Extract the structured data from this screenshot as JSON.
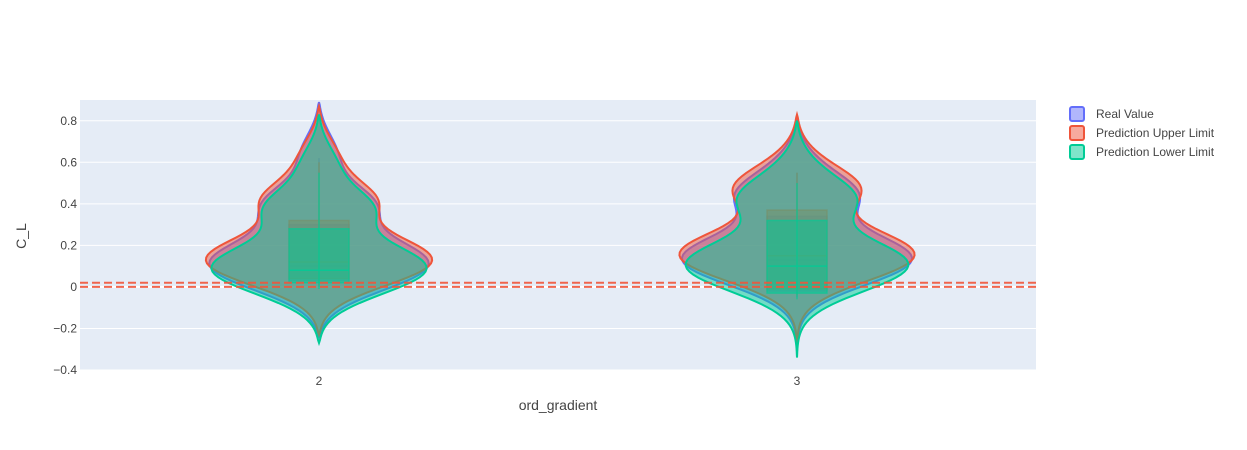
{
  "chart_data": {
    "type": "violin",
    "xlabel": "ord_gradient",
    "ylabel": "C_L",
    "categories": [
      "2",
      "3"
    ],
    "ylim": [
      -0.4,
      0.9
    ],
    "yticks": [
      -0.4,
      -0.2,
      0,
      0.2,
      0.4,
      0.6,
      0.8
    ],
    "ytick_labels": [
      "−0.4",
      "−0.2",
      "0",
      "0.2",
      "0.4",
      "0.6",
      "0.8"
    ],
    "grid": true,
    "legend_position": "top-right",
    "background_color": "#e5ecf6",
    "reference_lines": [
      {
        "y": 0.0,
        "color": "#ef553b",
        "style": "dashed"
      },
      {
        "y": 0.02,
        "color": "#ef553b",
        "style": "dashed"
      }
    ],
    "series": [
      {
        "name": "Real Value",
        "color": "#636efa",
        "violins": [
          {
            "category": "2",
            "min": -0.24,
            "max": 0.89,
            "q1": 0.03,
            "median": 0.1,
            "q3": 0.3,
            "whisker_low": -0.0,
            "whisker_high": 0.62
          },
          {
            "category": "3",
            "min": -0.31,
            "max": 0.82,
            "q1": -0.02,
            "median": 0.13,
            "q3": 0.34,
            "whisker_low": -0.05,
            "whisker_high": 0.55
          }
        ]
      },
      {
        "name": "Prediction Upper Limit",
        "color": "#ef553b",
        "violins": [
          {
            "category": "2",
            "min": -0.23,
            "max": 0.87,
            "q1": 0.04,
            "median": 0.12,
            "q3": 0.32,
            "whisker_low": 0.01,
            "whisker_high": 0.6
          },
          {
            "category": "3",
            "min": -0.3,
            "max": 0.83,
            "q1": -0.01,
            "median": 0.15,
            "q3": 0.37,
            "whisker_low": -0.04,
            "whisker_high": 0.55
          }
        ]
      },
      {
        "name": "Prediction Lower Limit",
        "color": "#00cc96",
        "violins": [
          {
            "category": "2",
            "min": -0.27,
            "max": 0.83,
            "q1": 0.02,
            "median": 0.08,
            "q3": 0.28,
            "whisker_low": -0.01,
            "whisker_high": 0.55
          },
          {
            "category": "3",
            "min": -0.34,
            "max": 0.8,
            "q1": -0.03,
            "median": 0.1,
            "q3": 0.32,
            "whisker_low": -0.06,
            "whisker_high": 0.5
          }
        ]
      }
    ]
  }
}
